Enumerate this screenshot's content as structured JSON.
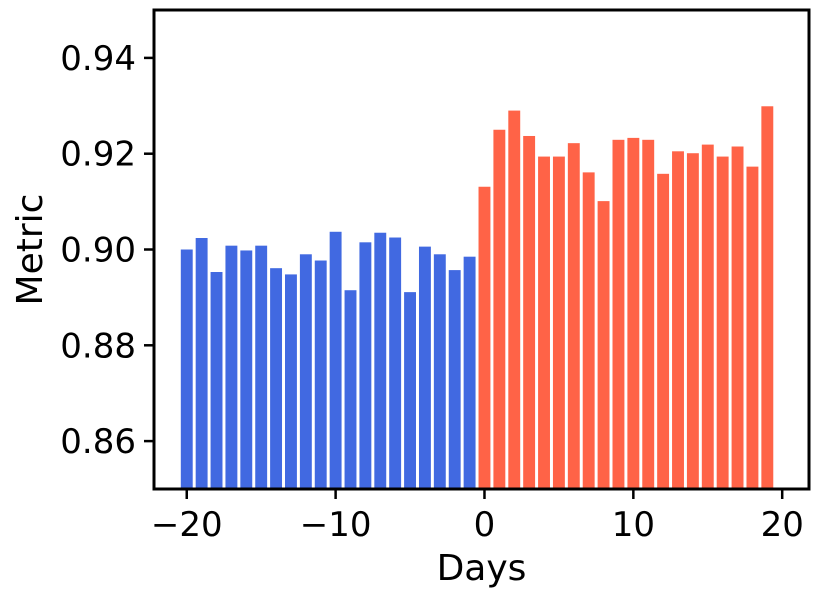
{
  "chart_data": {
    "type": "bar",
    "title": "",
    "xlabel": "Days",
    "ylabel": "Metric",
    "xlim": [
      -22.2,
      21.8
    ],
    "ylim": [
      0.85,
      0.95
    ],
    "grid": false,
    "x_ticks": [
      -20,
      -10,
      0,
      10,
      20
    ],
    "x_tick_labels": [
      "−20",
      "−10",
      "0",
      "10",
      "20"
    ],
    "y_ticks": [
      0.86,
      0.88,
      0.9,
      0.92,
      0.94
    ],
    "y_tick_labels": [
      "0.86",
      "0.88",
      "0.90",
      "0.92",
      "0.94"
    ],
    "series": [
      {
        "color": "#4169e1",
        "x": [
          -20,
          -19,
          -18,
          -17,
          -16,
          -15,
          -14,
          -13,
          -12,
          -11,
          -10,
          -9,
          -8,
          -7,
          -6,
          -5,
          -4,
          -3,
          -2,
          -1
        ],
        "values": [
          0.9,
          0.9024,
          0.8953,
          0.9008,
          0.8998,
          0.9008,
          0.8961,
          0.8948,
          0.899,
          0.8977,
          0.9037,
          0.8915,
          0.9015,
          0.9035,
          0.9025,
          0.8911,
          0.9006,
          0.899,
          0.8957,
          0.8985
        ]
      },
      {
        "color": "#ff6347",
        "x": [
          0,
          1,
          2,
          3,
          4,
          5,
          6,
          7,
          8,
          9,
          10,
          11,
          12,
          13,
          14,
          15,
          16,
          17,
          18,
          19
        ],
        "values": [
          0.9131,
          0.925,
          0.929,
          0.9237,
          0.9194,
          0.9194,
          0.9222,
          0.9161,
          0.9101,
          0.9229,
          0.9233,
          0.9229,
          0.9158,
          0.9205,
          0.9201,
          0.9219,
          0.9194,
          0.9215,
          0.9173,
          0.9299
        ]
      }
    ]
  }
}
